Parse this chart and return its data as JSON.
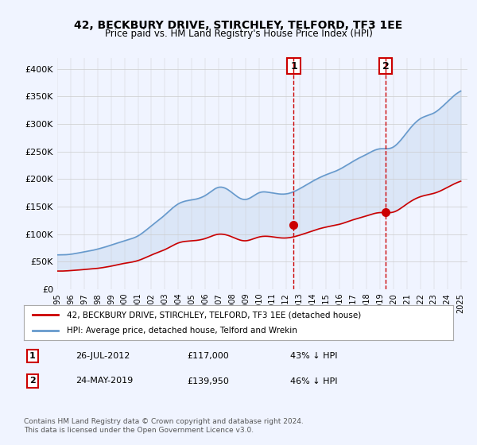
{
  "title": "42, BECKBURY DRIVE, STIRCHLEY, TELFORD, TF3 1EE",
  "subtitle": "Price paid vs. HM Land Registry's House Price Index (HPI)",
  "ylabel": "",
  "ylim": [
    0,
    420000
  ],
  "yticks": [
    0,
    50000,
    100000,
    150000,
    200000,
    250000,
    300000,
    350000,
    400000
  ],
  "ytick_labels": [
    "£0",
    "£50K",
    "£100K",
    "£150K",
    "£200K",
    "£250K",
    "£300K",
    "£350K",
    "£400K"
  ],
  "bg_color": "#f0f4ff",
  "plot_bg_color": "#f0f4ff",
  "grid_color": "#cccccc",
  "hpi_color": "#6699cc",
  "price_color": "#cc0000",
  "transaction1_date": "2012-07-26",
  "transaction1_price": 117000,
  "transaction1_label": "1",
  "transaction2_date": "2019-05-24",
  "transaction2_price": 139950,
  "transaction2_label": "2",
  "legend_label_price": "42, BECKBURY DRIVE, STIRCHLEY, TELFORD, TF3 1EE (detached house)",
  "legend_label_hpi": "HPI: Average price, detached house, Telford and Wrekin",
  "note1_num": "1",
  "note1_date": "26-JUL-2012",
  "note1_price": "£117,000",
  "note1_pct": "43% ↓ HPI",
  "note2_num": "2",
  "note2_date": "24-MAY-2019",
  "note2_price": "£139,950",
  "note2_pct": "46% ↓ HPI",
  "footer": "Contains HM Land Registry data © Crown copyright and database right 2024.\nThis data is licensed under the Open Government Licence v3.0.",
  "hpi_data": {
    "years": [
      1995,
      1996,
      1997,
      1998,
      1999,
      2000,
      2001,
      2002,
      2003,
      2004,
      2005,
      2006,
      2007,
      2008,
      2009,
      2010,
      2011,
      2012,
      2013,
      2014,
      2015,
      2016,
      2017,
      2018,
      2019,
      2020,
      2021,
      2022,
      2023,
      2024,
      2025
    ],
    "values": [
      62000,
      64000,
      68000,
      73000,
      80000,
      88000,
      97000,
      115000,
      135000,
      155000,
      162000,
      170000,
      185000,
      175000,
      163000,
      175000,
      175000,
      173000,
      182000,
      196000,
      208000,
      218000,
      232000,
      245000,
      255000,
      258000,
      285000,
      310000,
      320000,
      340000,
      360000
    ]
  },
  "price_data": {
    "years": [
      1995,
      1996,
      1997,
      1998,
      1999,
      2000,
      2001,
      2002,
      2003,
      2004,
      2005,
      2006,
      2007,
      2008,
      2009,
      2010,
      2011,
      2012,
      2013,
      2014,
      2015,
      2016,
      2017,
      2018,
      2019,
      2020,
      2021,
      2022,
      2023,
      2024,
      2025
    ],
    "values": [
      33000,
      34000,
      36000,
      38000,
      42000,
      47000,
      52000,
      62000,
      72000,
      84000,
      88000,
      92000,
      100000,
      95000,
      88000,
      95000,
      95000,
      93000,
      98000,
      106000,
      113000,
      118000,
      126000,
      133000,
      139000,
      140000,
      155000,
      168000,
      174000,
      185000,
      196000
    ]
  }
}
